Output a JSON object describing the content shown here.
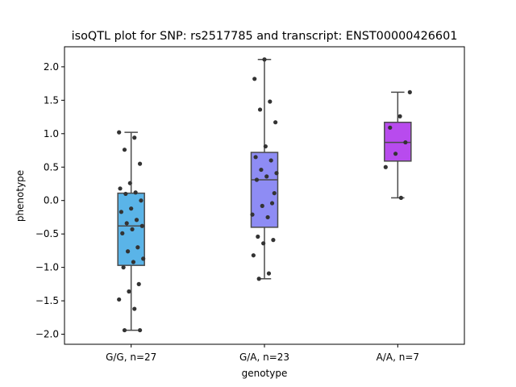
{
  "chart_data": {
    "type": "box",
    "title": "isoQTL plot for SNP: rs2517785 and transcript: ENST00000426601",
    "xlabel": "genotype",
    "ylabel": "phenotype",
    "ylim": [
      -2.15,
      2.3
    ],
    "yticks": [
      -2.0,
      -1.5,
      -1.0,
      -0.5,
      0.0,
      0.5,
      1.0,
      1.5,
      2.0
    ],
    "ytick_labels": [
      "−2.0",
      "−1.5",
      "−1.0",
      "−0.5",
      "0.0",
      "0.5",
      "1.0",
      "1.5",
      "2.0"
    ],
    "grid": false,
    "categories": [
      "G/G, n=27",
      "G/A, n=23",
      "A/A, n=7"
    ],
    "boxes": [
      {
        "category": "G/G, n=27",
        "color": "#5AB4E8",
        "whisker_low": -1.94,
        "q1": -0.97,
        "median": -0.38,
        "q3": 0.11,
        "whisker_high": 1.02,
        "points": [
          1.02,
          0.94,
          0.76,
          0.55,
          0.26,
          0.18,
          0.12,
          0.1,
          0.0,
          -0.12,
          -0.17,
          -0.29,
          -0.34,
          -0.38,
          -0.43,
          -0.49,
          -0.7,
          -0.76,
          -0.87,
          -0.92,
          -1.0,
          -1.25,
          -1.36,
          -1.48,
          -1.62,
          -1.94,
          -1.94
        ]
      },
      {
        "category": "G/A, n=23",
        "color": "#8E8CF4",
        "whisker_low": -1.17,
        "q1": -0.4,
        "median": 0.31,
        "q3": 0.72,
        "whisker_high": 2.11,
        "points": [
          2.11,
          1.82,
          1.48,
          1.36,
          1.17,
          0.81,
          0.65,
          0.6,
          0.46,
          0.41,
          0.36,
          0.31,
          -0.04,
          -0.08,
          -0.21,
          -0.25,
          -0.54,
          -0.59,
          -0.64,
          -0.82,
          -1.09,
          -1.17,
          0.11
        ]
      },
      {
        "category": "A/A, n=7",
        "color": "#B84BEE",
        "whisker_low": 0.04,
        "q1": 0.59,
        "median": 0.87,
        "q3": 1.17,
        "whisker_high": 1.62,
        "points": [
          1.62,
          1.26,
          1.09,
          0.87,
          0.7,
          0.5,
          0.04
        ]
      }
    ]
  }
}
